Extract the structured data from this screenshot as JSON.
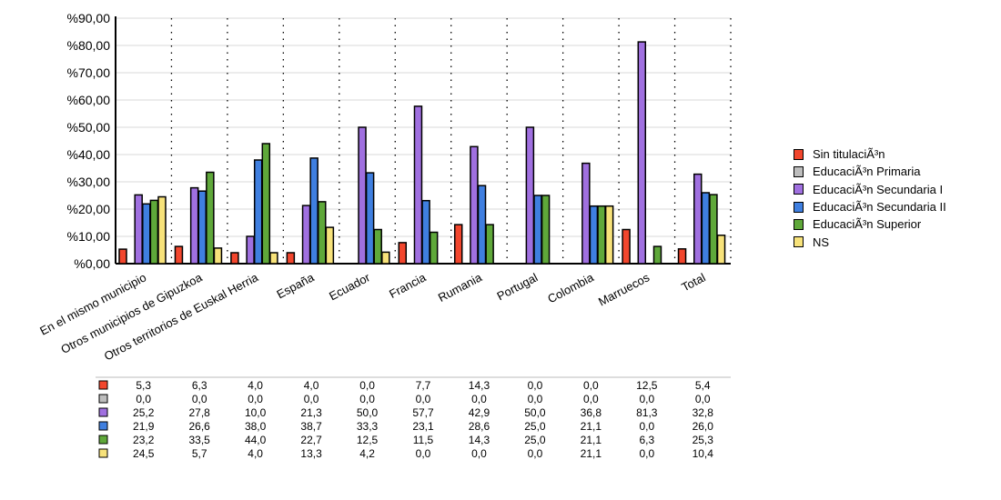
{
  "chart_data": {
    "type": "bar",
    "title": "",
    "xlabel": "",
    "ylabel": "",
    "ylim": [
      0,
      90
    ],
    "yticks": [
      "%0,00",
      "%10,00",
      "%20,00",
      "%30,00",
      "%40,00",
      "%50,00",
      "%60,00",
      "%70,00",
      "%80,00",
      "%90,00"
    ],
    "grid": true,
    "legend_position": "right",
    "categories": [
      "En el mismo municipio",
      "Otros municipios de Gipuzkoa",
      "Otros territorios de Euskal Herria",
      "España",
      "Ecuador",
      "Francia",
      "Rumania",
      "Portugal",
      "Colombia",
      "Marruecos",
      "Total"
    ],
    "series": [
      {
        "name": "Sin titulaciÃ³n",
        "color": "#f2462d",
        "values": [
          5.3,
          6.3,
          4.0,
          4.0,
          0.0,
          7.7,
          14.3,
          0.0,
          0.0,
          12.5,
          5.4
        ]
      },
      {
        "name": "EducaciÃ³n Primaria",
        "color": "#bdbdbd",
        "values": [
          0.0,
          0.0,
          0.0,
          0.0,
          0.0,
          0.0,
          0.0,
          0.0,
          0.0,
          0.0,
          0.0
        ]
      },
      {
        "name": "EducaciÃ³n Secundaria I",
        "color": "#a070e0",
        "values": [
          25.2,
          27.8,
          10.0,
          21.3,
          50.0,
          57.7,
          42.9,
          50.0,
          36.8,
          81.3,
          32.8
        ]
      },
      {
        "name": "EducaciÃ³n Secundaria II",
        "color": "#3f7fe0",
        "values": [
          21.9,
          26.6,
          38.0,
          38.7,
          33.3,
          23.1,
          28.6,
          25.0,
          21.1,
          0.0,
          26.0
        ]
      },
      {
        "name": "EducaciÃ³n Superior",
        "color": "#5fa83a",
        "values": [
          23.2,
          33.5,
          44.0,
          22.7,
          12.5,
          11.5,
          14.3,
          25.0,
          21.1,
          6.3,
          25.3
        ]
      },
      {
        "name": "NS",
        "color": "#f7e27a",
        "values": [
          24.5,
          5.7,
          4.0,
          13.3,
          4.2,
          0.0,
          0.0,
          0.0,
          21.1,
          0.0,
          10.4
        ]
      }
    ]
  }
}
